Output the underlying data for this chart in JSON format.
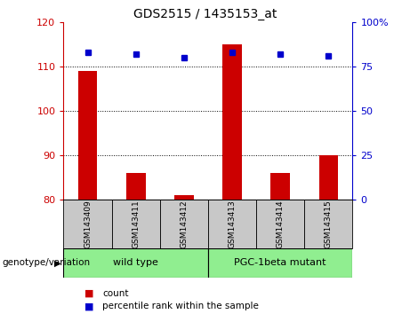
{
  "title": "GDS2515 / 1435153_at",
  "samples": [
    "GSM143409",
    "GSM143411",
    "GSM143412",
    "GSM143413",
    "GSM143414",
    "GSM143415"
  ],
  "bar_values": [
    109,
    86,
    81,
    115,
    86,
    90
  ],
  "percentile_values": [
    83,
    82,
    80,
    83,
    82,
    81
  ],
  "bar_color": "#cc0000",
  "dot_color": "#0000cc",
  "ylim_left": [
    80,
    120
  ],
  "ylim_right": [
    0,
    100
  ],
  "yticks_left": [
    80,
    90,
    100,
    110,
    120
  ],
  "yticks_right": [
    0,
    25,
    50,
    75,
    100
  ],
  "ytick_labels_right": [
    "0",
    "25",
    "50",
    "75",
    "100%"
  ],
  "grid_lines": [
    90,
    100,
    110
  ],
  "group_label": "genotype/variation",
  "legend_count_label": "count",
  "legend_percentile_label": "percentile rank within the sample",
  "tick_area_color": "#c8c8c8",
  "wt_color": "#90ee90",
  "pgc_color": "#90ee90",
  "bar_bottom": 80,
  "bar_width": 0.4
}
